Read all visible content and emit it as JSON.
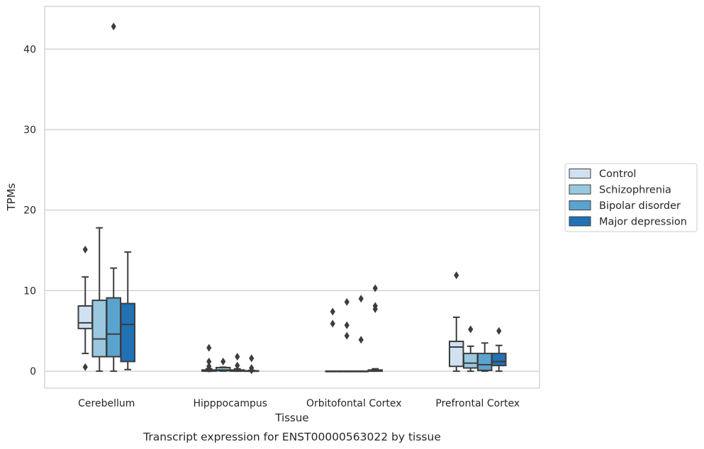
{
  "caption": "Transcript expression for ENST00000563022 by tissue",
  "chart_data": {
    "type": "box",
    "xlabel": "Tissue",
    "ylabel": "TPMs",
    "ylim": [
      -2.1,
      45.3
    ],
    "yticks": [
      0,
      10,
      20,
      30,
      40
    ],
    "grid": "horizontal",
    "legend_position": "right",
    "categories": [
      "Cerebellum",
      "Hipppocampus",
      "Orbitofontal Cortex",
      "Prefrontal Cortex"
    ],
    "series": [
      {
        "name": "Control",
        "color": "#d0e1f2",
        "boxes": [
          {
            "whisker_low": 2.2,
            "q1": 5.3,
            "median": 6.0,
            "q3": 8.1,
            "whisker_high": 11.7,
            "outliers": [
              15.1,
              0.5
            ]
          },
          {
            "whisker_low": 0.0,
            "q1": 0.0,
            "median": 0.05,
            "q3": 0.15,
            "whisker_high": 0.3,
            "outliers": [
              2.9,
              1.2,
              0.6,
              0.3
            ]
          },
          {
            "whisker_low": 0.0,
            "q1": 0.0,
            "median": 0.0,
            "q3": 0.0,
            "whisker_high": 0.0,
            "outliers": [
              7.4,
              5.9
            ]
          },
          {
            "whisker_low": 0.0,
            "q1": 0.6,
            "median": 3.0,
            "q3": 3.7,
            "whisker_high": 6.7,
            "outliers": [
              11.9
            ]
          }
        ]
      },
      {
        "name": "Schizophrenia",
        "color": "#9ac8e0",
        "boxes": [
          {
            "whisker_low": 0.0,
            "q1": 1.8,
            "median": 4.0,
            "q3": 8.8,
            "whisker_high": 17.8,
            "outliers": []
          },
          {
            "whisker_low": 0.0,
            "q1": 0.05,
            "median": 0.15,
            "q3": 0.45,
            "whisker_high": 0.5,
            "outliers": [
              1.2
            ]
          },
          {
            "whisker_low": 0.0,
            "q1": 0.0,
            "median": 0.0,
            "q3": 0.0,
            "whisker_high": 0.0,
            "outliers": [
              8.6,
              5.7,
              4.4
            ]
          },
          {
            "whisker_low": 0.0,
            "q1": 0.4,
            "median": 1.0,
            "q3": 2.2,
            "whisker_high": 3.1,
            "outliers": [
              5.2
            ]
          }
        ]
      },
      {
        "name": "Bipolar disorder",
        "color": "#5ba3cf",
        "boxes": [
          {
            "whisker_low": 0.0,
            "q1": 1.8,
            "median": 4.6,
            "q3": 9.1,
            "whisker_high": 12.8,
            "outliers": [
              42.8
            ]
          },
          {
            "whisker_low": 0.0,
            "q1": 0.0,
            "median": 0.05,
            "q3": 0.15,
            "whisker_high": 0.3,
            "outliers": [
              1.8,
              0.7
            ]
          },
          {
            "whisker_low": 0.0,
            "q1": 0.0,
            "median": 0.0,
            "q3": 0.0,
            "whisker_high": 0.0,
            "outliers": [
              9.0,
              3.9
            ]
          },
          {
            "whisker_low": 0.0,
            "q1": 0.1,
            "median": 0.8,
            "q3": 2.2,
            "whisker_high": 3.5,
            "outliers": []
          }
        ]
      },
      {
        "name": "Major depression",
        "color": "#2171b5",
        "boxes": [
          {
            "whisker_low": 0.2,
            "q1": 1.2,
            "median": 5.8,
            "q3": 8.4,
            "whisker_high": 14.8,
            "outliers": []
          },
          {
            "whisker_low": 0.0,
            "q1": 0.0,
            "median": 0.0,
            "q3": 0.05,
            "whisker_high": 0.1,
            "outliers": [
              1.6,
              0.4,
              0.1
            ]
          },
          {
            "whisker_low": 0.0,
            "q1": 0.0,
            "median": 0.05,
            "q3": 0.15,
            "whisker_high": 0.3,
            "outliers": [
              10.3,
              8.1,
              7.7
            ]
          },
          {
            "whisker_low": 0.0,
            "q1": 0.7,
            "median": 1.2,
            "q3": 2.2,
            "whisker_high": 3.2,
            "outliers": [
              5.0
            ]
          }
        ]
      }
    ]
  }
}
